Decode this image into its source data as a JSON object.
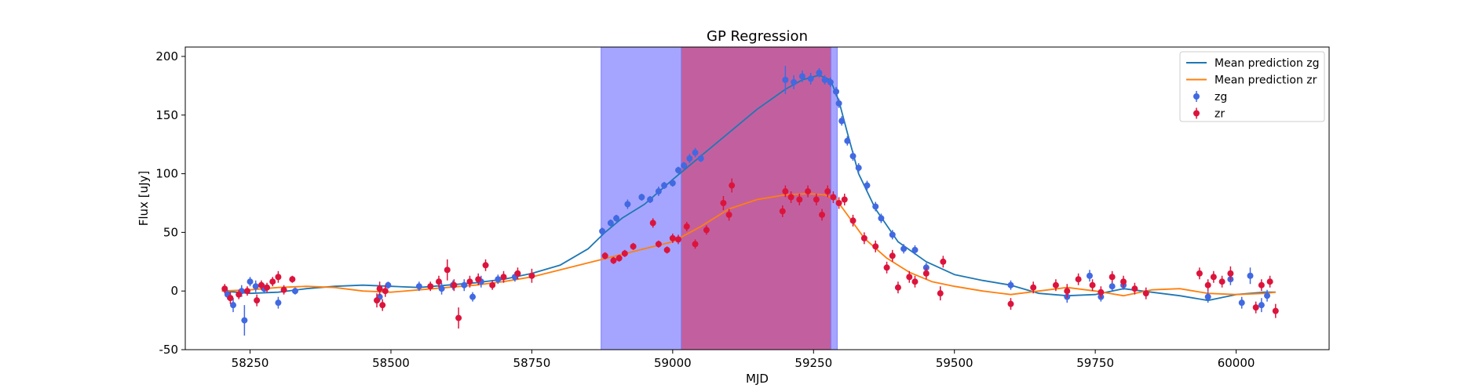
{
  "chart_data": {
    "type": "scatter",
    "title": "GP Regression",
    "xlabel": "MJD",
    "ylabel": "Flux [uJy]",
    "xlim": [
      58135,
      60165
    ],
    "ylim": [
      -50,
      208
    ],
    "xticks": [
      58250,
      58500,
      58750,
      59000,
      59250,
      59500,
      59750,
      60000
    ],
    "yticks": [
      -50,
      0,
      50,
      100,
      150,
      200
    ],
    "legend_position": "top-right",
    "shaded_regions": [
      {
        "x0": 58873,
        "x1": 59292,
        "color": "#a5a5ff"
      },
      {
        "x0": 59015,
        "x1": 59281,
        "color": "#c2609f"
      }
    ],
    "colors": {
      "zg": "#4169e1",
      "zr": "#dc143c",
      "mean_zg": "#1f77b4",
      "mean_zr": "#ff7f0e"
    },
    "series": [
      {
        "name": "Mean prediction zg",
        "kind": "line",
        "color": "#1f77b4",
        "x": [
          58200,
          58250,
          58300,
          58350,
          58400,
          58450,
          58500,
          58550,
          58600,
          58650,
          58700,
          58750,
          58800,
          58850,
          58880,
          58910,
          58950,
          59000,
          59050,
          59100,
          59150,
          59200,
          59230,
          59260,
          59280,
          59295,
          59310,
          59330,
          59360,
          59400,
          59450,
          59500,
          59550,
          59600,
          59650,
          59700,
          59750,
          59800,
          59850,
          59900,
          59950,
          60000,
          60050,
          60070
        ],
        "y": [
          0,
          -2,
          -1,
          2,
          4,
          5,
          4,
          3,
          5,
          7,
          10,
          15,
          22,
          36,
          50,
          62,
          74,
          95,
          115,
          135,
          155,
          172,
          180,
          184,
          180,
          162,
          135,
          100,
          70,
          42,
          25,
          14,
          9,
          5,
          -2,
          -4,
          -3,
          2,
          -1,
          -4,
          -8,
          -3,
          -1,
          -1
        ]
      },
      {
        "name": "Mean prediction zr",
        "kind": "line",
        "color": "#ff7f0e",
        "x": [
          58200,
          58250,
          58300,
          58350,
          58400,
          58450,
          58500,
          58550,
          58600,
          58650,
          58700,
          58750,
          58800,
          58850,
          58900,
          58950,
          59000,
          59050,
          59100,
          59150,
          59200,
          59240,
          59270,
          59290,
          59310,
          59340,
          59380,
          59420,
          59460,
          59500,
          59550,
          59600,
          59650,
          59700,
          59750,
          59800,
          59850,
          59900,
          59950,
          60000,
          60050,
          60070
        ],
        "y": [
          0,
          1,
          3,
          4,
          3,
          0,
          -1,
          1,
          3,
          5,
          8,
          12,
          18,
          24,
          30,
          36,
          42,
          55,
          70,
          78,
          82,
          83,
          82,
          78,
          65,
          45,
          28,
          16,
          8,
          4,
          0,
          -3,
          0,
          3,
          0,
          -4,
          1,
          2,
          -2,
          -3,
          -2,
          -1
        ]
      },
      {
        "name": "zg",
        "kind": "points",
        "color": "#4169e1",
        "x": [
          58210,
          58220,
          58235,
          58240,
          58250,
          58260,
          58275,
          58300,
          58330,
          58480,
          58495,
          58550,
          58590,
          58610,
          58630,
          58645,
          58660,
          58690,
          58720,
          58875,
          58890,
          58900,
          58920,
          58945,
          58960,
          58975,
          58985,
          59000,
          59010,
          59020,
          59030,
          59040,
          59050,
          59200,
          59215,
          59230,
          59245,
          59260,
          59270,
          59280,
          59290,
          59295,
          59300,
          59310,
          59320,
          59330,
          59345,
          59360,
          59370,
          59390,
          59410,
          59430,
          59450,
          59600,
          59700,
          59740,
          59760,
          59780,
          59800,
          59950,
          59990,
          60010,
          60025,
          60045,
          60055
        ],
        "y": [
          -3,
          -12,
          0,
          -25,
          8,
          4,
          2,
          -10,
          0,
          -5,
          5,
          4,
          2,
          5,
          5,
          -5,
          8,
          10,
          12,
          51,
          58,
          62,
          74,
          80,
          78,
          85,
          90,
          92,
          103,
          107,
          113,
          118,
          113,
          180,
          178,
          183,
          181,
          186,
          180,
          178,
          170,
          160,
          145,
          128,
          115,
          105,
          90,
          72,
          62,
          48,
          36,
          35,
          20,
          5,
          -5,
          13,
          -5,
          4,
          5,
          -5,
          10,
          -10,
          13,
          -12,
          -4
        ],
        "yerr": [
          4,
          6,
          5,
          13,
          4,
          5,
          4,
          5,
          3,
          4,
          3,
          4,
          5,
          4,
          5,
          4,
          5,
          4,
          4,
          3,
          3,
          3,
          4,
          3,
          3,
          4,
          3,
          3,
          3,
          3,
          4,
          4,
          3,
          12,
          6,
          5,
          5,
          4,
          4,
          4,
          4,
          4,
          4,
          4,
          4,
          4,
          4,
          4,
          4,
          4,
          4,
          4,
          4,
          4,
          5,
          5,
          4,
          4,
          4,
          5,
          5,
          5,
          7,
          6,
          5
        ]
      },
      {
        "name": "zr",
        "kind": "points",
        "color": "#dc143c",
        "x": [
          58205,
          58215,
          58230,
          58245,
          58262,
          58270,
          58280,
          58290,
          58300,
          58310,
          58325,
          58475,
          58480,
          58485,
          58490,
          58570,
          58585,
          58600,
          58612,
          58620,
          58640,
          58655,
          58668,
          58680,
          58700,
          58725,
          58750,
          58880,
          58895,
          58905,
          58915,
          58930,
          58965,
          58975,
          58990,
          59000,
          59010,
          59025,
          59040,
          59060,
          59090,
          59100,
          59105,
          59195,
          59200,
          59210,
          59225,
          59240,
          59255,
          59265,
          59275,
          59285,
          59295,
          59305,
          59320,
          59340,
          59360,
          59380,
          59390,
          59400,
          59420,
          59430,
          59450,
          59475,
          59480,
          59600,
          59640,
          59680,
          59700,
          59720,
          59745,
          59760,
          59780,
          59800,
          59820,
          59840,
          59935,
          59950,
          59960,
          59975,
          59990,
          60035,
          60045,
          60060,
          60070
        ],
        "y": [
          2,
          -6,
          -3,
          0,
          -8,
          5,
          3,
          8,
          12,
          1,
          10,
          -8,
          2,
          -12,
          0,
          4,
          8,
          18,
          5,
          -23,
          8,
          10,
          22,
          5,
          12,
          15,
          13,
          30,
          26,
          28,
          32,
          38,
          58,
          40,
          35,
          45,
          44,
          55,
          40,
          52,
          75,
          65,
          90,
          68,
          85,
          80,
          78,
          85,
          78,
          65,
          85,
          80,
          75,
          78,
          60,
          45,
          38,
          20,
          30,
          3,
          12,
          8,
          15,
          -2,
          25,
          -11,
          3,
          5,
          0,
          10,
          5,
          -1,
          12,
          8,
          2,
          -2,
          15,
          5,
          12,
          8,
          15,
          -14,
          5,
          8,
          -17
        ],
        "yerr": [
          4,
          5,
          4,
          4,
          5,
          4,
          4,
          4,
          5,
          4,
          3,
          6,
          6,
          5,
          5,
          4,
          5,
          9,
          5,
          9,
          5,
          5,
          5,
          4,
          5,
          5,
          6,
          3,
          3,
          3,
          3,
          3,
          4,
          3,
          3,
          4,
          4,
          4,
          4,
          4,
          6,
          5,
          6,
          5,
          5,
          5,
          5,
          5,
          5,
          5,
          5,
          5,
          5,
          5,
          5,
          5,
          5,
          5,
          5,
          5,
          5,
          5,
          5,
          6,
          5,
          5,
          5,
          5,
          6,
          5,
          5,
          5,
          5,
          5,
          5,
          5,
          5,
          5,
          5,
          5,
          6,
          5,
          5,
          5,
          6
        ]
      }
    ]
  }
}
